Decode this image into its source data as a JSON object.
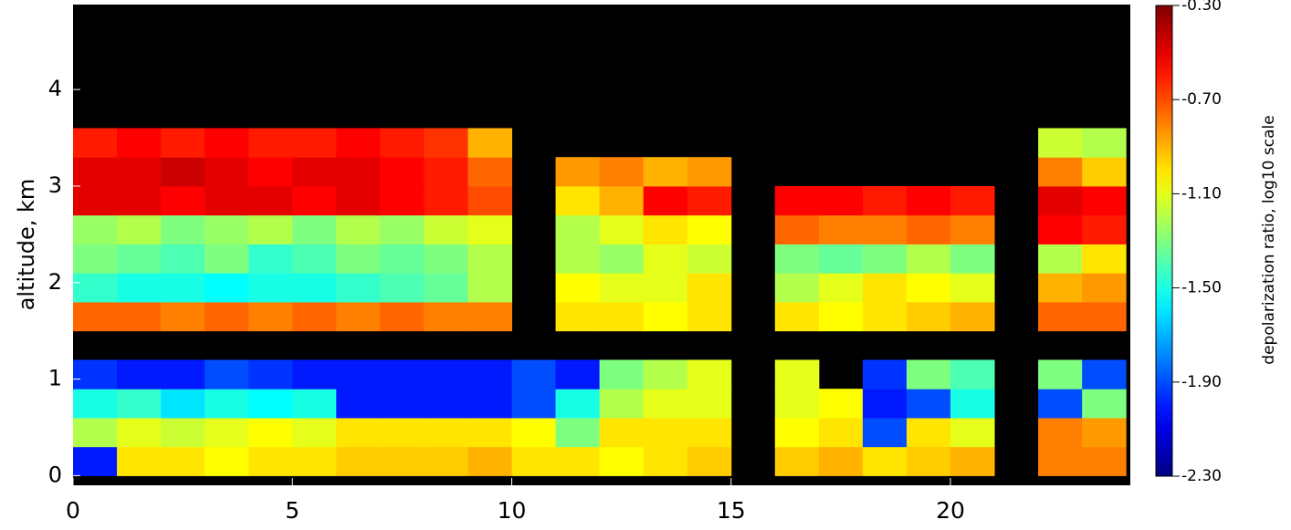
{
  "chart_data": {
    "type": "heatmap",
    "y_label": "altitude, km",
    "colorbar_label": "depolarization ratio, log10 scale",
    "x": [
      0.5,
      1.5,
      2.5,
      3.5,
      4.5,
      5.5,
      6.5,
      7.5,
      8.5,
      9.5,
      10.5,
      11.5,
      12.5,
      13.5,
      14.5,
      15.5,
      16.5,
      17.5,
      18.5,
      19.5,
      20.5,
      21.5,
      22.5,
      23.5
    ],
    "y": [
      0.15,
      0.45,
      0.75,
      1.05,
      1.35,
      1.65,
      1.95,
      2.25,
      2.55,
      2.85,
      3.15,
      3.45,
      3.75,
      4.05,
      4.35,
      4.65
    ],
    "z": [
      [
        -2.0,
        -1.0,
        -1.0,
        -1.05,
        -1.0,
        -1.0,
        -0.95,
        -0.95,
        -0.95,
        -0.9,
        -1.0,
        -1.0,
        -1.05,
        -1.0,
        -0.95,
        null,
        -0.95,
        -0.9,
        -1.0,
        -0.95,
        -0.9,
        null,
        -0.8,
        -0.8
      ],
      [
        -1.2,
        -1.1,
        -1.15,
        -1.1,
        -1.05,
        -1.1,
        -1.0,
        -1.0,
        -1.0,
        -1.0,
        -1.05,
        -1.3,
        -1.0,
        -1.0,
        -1.0,
        null,
        -1.05,
        -1.0,
        -1.9,
        -1.0,
        -1.1,
        null,
        -0.8,
        -0.85
      ],
      [
        -1.5,
        -1.45,
        -1.6,
        -1.5,
        -1.55,
        -1.5,
        -2.0,
        -2.0,
        -2.0,
        -2.0,
        -1.9,
        -1.5,
        -1.2,
        -1.1,
        -1.1,
        null,
        -1.1,
        -1.05,
        -2.0,
        -1.9,
        -1.5,
        null,
        -1.9,
        -1.3
      ],
      [
        -1.95,
        -2.0,
        -2.0,
        -1.9,
        -1.95,
        -2.0,
        -2.0,
        -2.0,
        -2.0,
        -2.0,
        -1.9,
        -2.0,
        -1.3,
        -1.2,
        -1.1,
        null,
        -1.1,
        null,
        -1.95,
        -1.3,
        -1.4,
        null,
        -1.3,
        -1.9
      ],
      [
        null,
        null,
        null,
        null,
        null,
        null,
        null,
        null,
        null,
        null,
        null,
        null,
        null,
        null,
        null,
        null,
        null,
        null,
        null,
        null,
        null,
        null,
        null,
        null
      ],
      [
        -0.75,
        -0.75,
        -0.8,
        -0.75,
        -0.8,
        -0.75,
        -0.8,
        -0.75,
        -0.8,
        -0.8,
        null,
        -1.0,
        -1.0,
        -1.05,
        -1.0,
        null,
        -1.0,
        -1.05,
        -1.0,
        -0.95,
        -0.9,
        null,
        -0.75,
        -0.75
      ],
      [
        -1.45,
        -1.5,
        -1.5,
        -1.55,
        -1.5,
        -1.5,
        -1.45,
        -1.4,
        -1.35,
        -1.2,
        null,
        -1.05,
        -1.1,
        -1.1,
        -1.0,
        null,
        -1.2,
        -1.1,
        -1.0,
        -1.05,
        -1.1,
        null,
        -0.9,
        -0.85
      ],
      [
        -1.3,
        -1.35,
        -1.4,
        -1.3,
        -1.45,
        -1.4,
        -1.3,
        -1.35,
        -1.3,
        -1.2,
        null,
        -1.2,
        -1.25,
        -1.1,
        -1.15,
        null,
        -1.3,
        -1.35,
        -1.3,
        -1.2,
        -1.3,
        null,
        -1.2,
        -1.0
      ],
      [
        -1.25,
        -1.2,
        -1.3,
        -1.25,
        -1.2,
        -1.3,
        -1.2,
        -1.25,
        -1.15,
        -1.1,
        null,
        -1.2,
        -1.1,
        -1.0,
        -1.05,
        null,
        -0.75,
        -0.8,
        -0.8,
        -0.75,
        -0.8,
        null,
        -0.55,
        -0.6
      ],
      [
        -0.5,
        -0.5,
        -0.55,
        -0.5,
        -0.5,
        -0.55,
        -0.5,
        -0.55,
        -0.6,
        -0.7,
        null,
        -1.0,
        -0.9,
        -0.55,
        -0.6,
        null,
        -0.55,
        -0.55,
        -0.6,
        -0.55,
        -0.6,
        null,
        -0.5,
        -0.55
      ],
      [
        -0.5,
        -0.5,
        -0.45,
        -0.5,
        -0.55,
        -0.5,
        -0.5,
        -0.55,
        -0.6,
        -0.75,
        null,
        -0.85,
        -0.8,
        -0.9,
        -0.85,
        null,
        null,
        null,
        null,
        null,
        null,
        null,
        -0.8,
        -0.95
      ],
      [
        -0.6,
        -0.55,
        -0.6,
        -0.55,
        -0.6,
        -0.6,
        -0.55,
        -0.6,
        -0.65,
        -0.9,
        null,
        null,
        null,
        null,
        null,
        null,
        null,
        null,
        null,
        null,
        null,
        null,
        -1.15,
        -1.2
      ],
      [
        null,
        null,
        null,
        null,
        null,
        null,
        null,
        null,
        null,
        null,
        null,
        null,
        null,
        null,
        null,
        null,
        null,
        null,
        null,
        null,
        null,
        null,
        null,
        null
      ],
      [
        null,
        null,
        null,
        null,
        null,
        null,
        null,
        null,
        null,
        null,
        null,
        null,
        null,
        null,
        null,
        null,
        null,
        null,
        null,
        null,
        null,
        null,
        null,
        null
      ],
      [
        null,
        null,
        null,
        null,
        null,
        null,
        null,
        null,
        null,
        null,
        null,
        null,
        null,
        null,
        null,
        null,
        null,
        null,
        null,
        null,
        null,
        null,
        null,
        null
      ],
      [
        null,
        null,
        null,
        null,
        null,
        null,
        null,
        null,
        null,
        null,
        null,
        null,
        null,
        null,
        null,
        null,
        null,
        null,
        null,
        null,
        null,
        null,
        null,
        null
      ]
    ],
    "xlim": [
      0,
      24.1
    ],
    "ylim": [
      -0.1,
      4.88
    ],
    "xticks": [
      0,
      5,
      10,
      15,
      20
    ],
    "yticks": [
      0,
      1,
      2,
      3,
      4
    ],
    "clim": [
      -2.3,
      -0.3
    ],
    "cticks": [
      {
        "value": -2.3,
        "label": "-2.30"
      },
      {
        "value": -1.9,
        "label": "-1.90"
      },
      {
        "value": -1.5,
        "label": "-1.50"
      },
      {
        "value": -1.1,
        "label": "-1.10"
      },
      {
        "value": -0.7,
        "label": "-0.70"
      },
      {
        "value": -0.3,
        "label": "-0.30"
      }
    ],
    "colormap": "jet",
    "background": "#000000"
  }
}
